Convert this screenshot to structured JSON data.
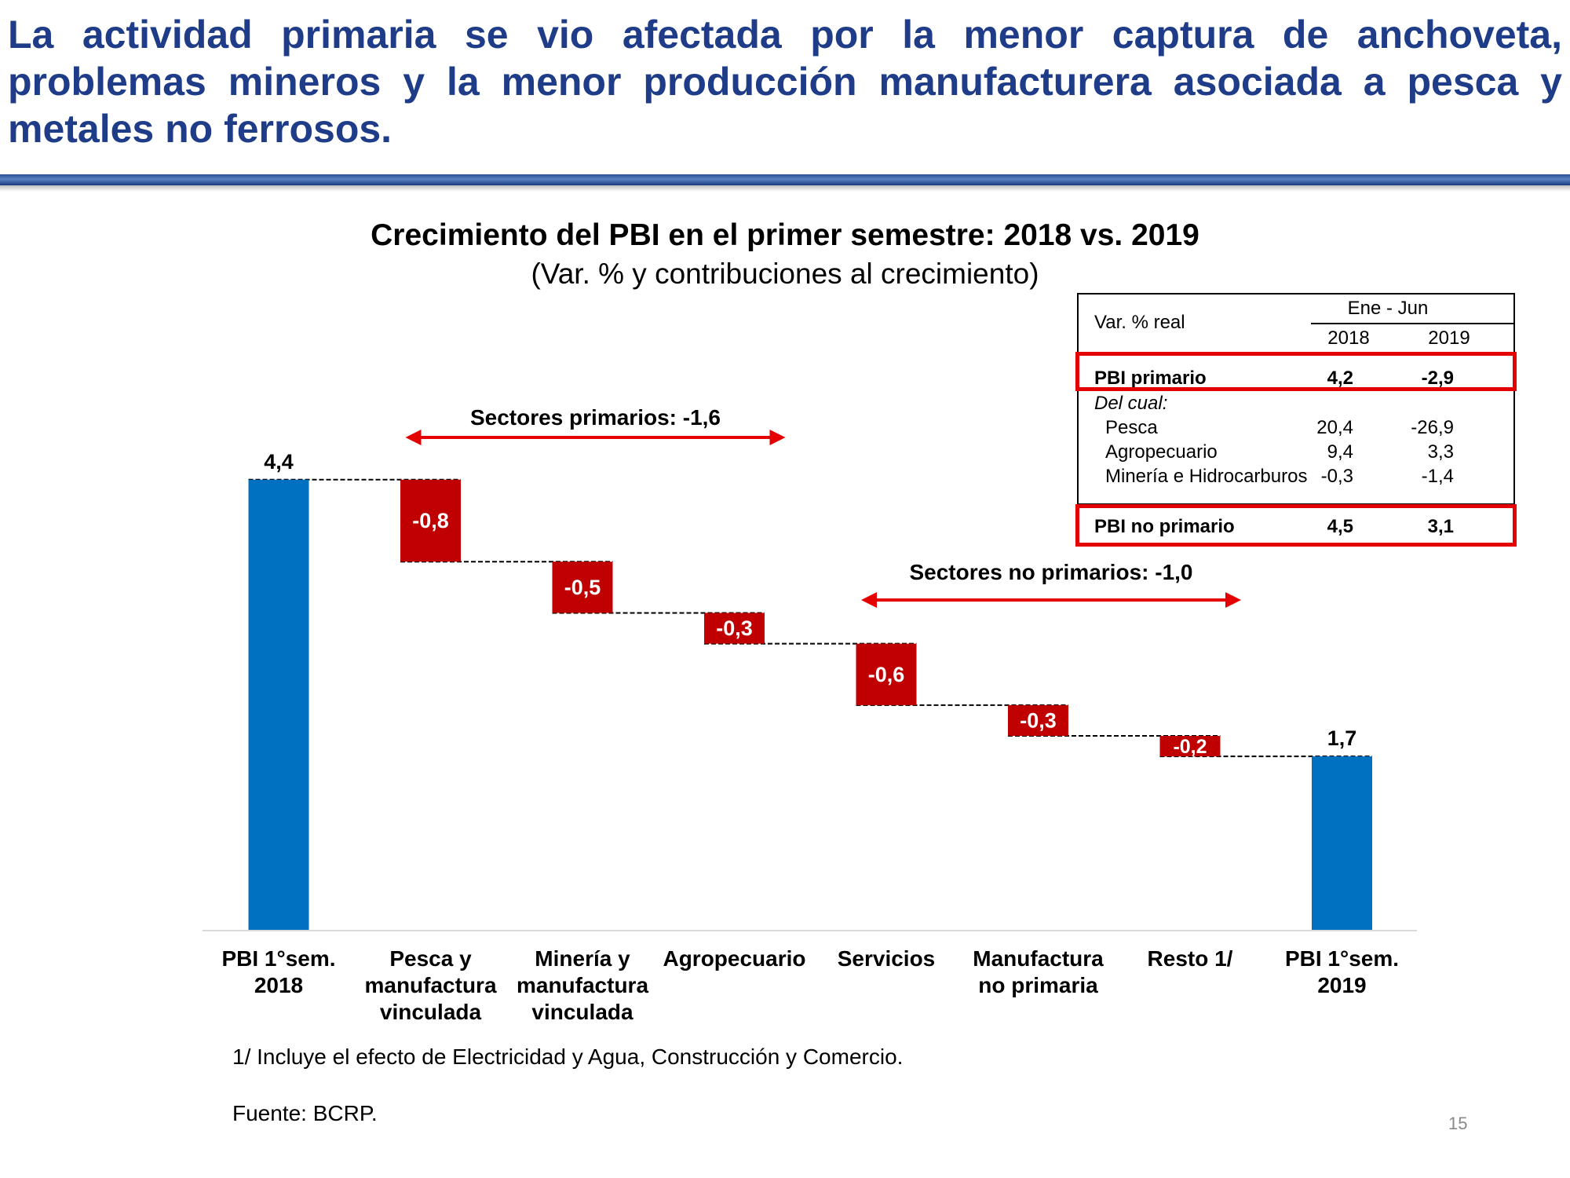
{
  "headline": "La actividad primaria se vio afectada por la menor captura de anchoveta, problemas mineros y la menor producción manufacturera asociada a pesca y metales no ferrosos.",
  "chart_data": {
    "type": "waterfall",
    "title": "Crecimiento del PBI en el primer semestre: 2018 vs. 2019",
    "subtitle": "(Var. % y contribuciones al crecimiento)",
    "categories": [
      [
        "PBI 1°sem.",
        "2018"
      ],
      [
        "Pesca y",
        "manufactura",
        "vinculada"
      ],
      [
        "Minería y",
        "manufactura",
        "vinculada"
      ],
      [
        "Agropecuario"
      ],
      [
        "Servicios"
      ],
      [
        "Manufactura",
        "no primaria"
      ],
      [
        "Resto 1/"
      ],
      [
        "PBI 1°sem.",
        "2019"
      ]
    ],
    "values": [
      4.4,
      -0.8,
      -0.5,
      -0.3,
      -0.6,
      -0.3,
      -0.2,
      1.7
    ],
    "value_labels": [
      "4,4",
      "-0,8",
      "-0,5",
      "-0,3",
      "-0,6",
      "-0,3",
      "-0,2",
      "1,7"
    ],
    "kinds": [
      "total",
      "delta",
      "delta",
      "delta",
      "delta",
      "delta",
      "delta",
      "total"
    ],
    "ylim": [
      0,
      4.4
    ],
    "colors": {
      "total": "#0070c0",
      "delta": "#c00000",
      "arrow": "#e40000"
    },
    "groups": [
      {
        "label": "Sectores primarios: -1,6",
        "from_index": 1,
        "to_index": 3
      },
      {
        "label": "Sectores no primarios: -1,0",
        "from_index": 4,
        "to_index": 6
      }
    ]
  },
  "inset_table": {
    "header_label": "Var. % real",
    "period": "Ene - Jun",
    "years": [
      "2018",
      "2019"
    ],
    "rows": [
      {
        "label": "PBI primario",
        "v2018": "4,2",
        "v2019": "-2,9",
        "style": "bold"
      },
      {
        "label": "Del cual:",
        "v2018": "",
        "v2019": "",
        "style": "italic"
      },
      {
        "label": "Pesca",
        "v2018": "20,4",
        "v2019": "-26,9",
        "style": "indent"
      },
      {
        "label": "Agropecuario",
        "v2018": "9,4",
        "v2019": "3,3",
        "style": "indent"
      },
      {
        "label": "Minería e Hidrocarburos",
        "v2018": "-0,3",
        "v2019": "-1,4",
        "style": "indent"
      },
      {
        "label": "PBI no primario",
        "v2018": "4,5",
        "v2019": "3,1",
        "style": "bold"
      }
    ],
    "highlight_color": "#e40000"
  },
  "footnote": "1/ Incluye el efecto de Electricidad y Agua, Construcción y Comercio.",
  "source": "Fuente: BCRP.",
  "page_number": "15"
}
